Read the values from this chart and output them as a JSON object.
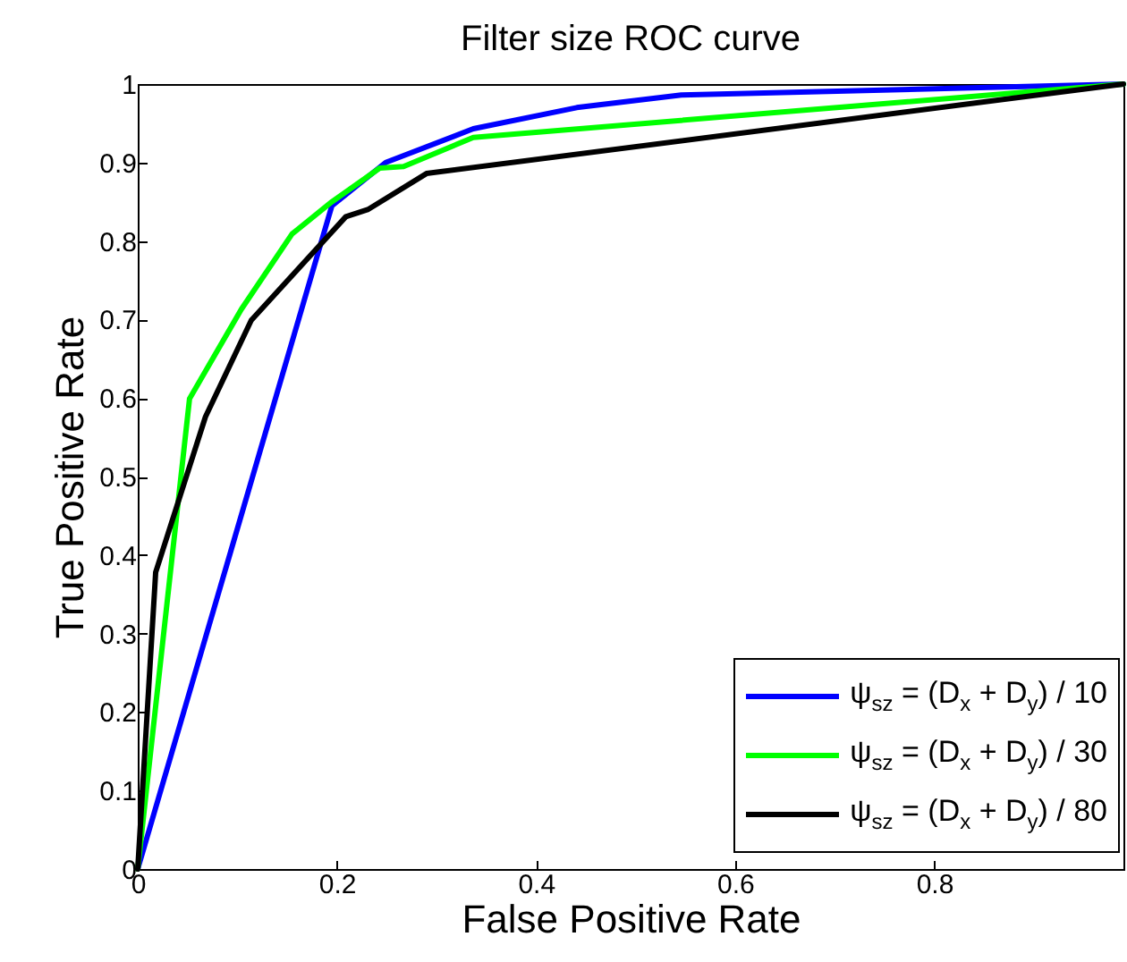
{
  "chart_data": {
    "type": "line",
    "title": "Filter size ROC curve",
    "xlabel": "False Positive Rate",
    "ylabel": "True Positive Rate",
    "xlim": [
      0,
      0.99
    ],
    "xticks": [
      0,
      0.2,
      0.4,
      0.6,
      0.8
    ],
    "ylim": [
      0,
      1
    ],
    "yticks": [
      0,
      0.1,
      0.2,
      0.3,
      0.4,
      0.5,
      0.6,
      0.7,
      0.8,
      0.9,
      1
    ],
    "grid": false,
    "legend": "bottom right",
    "marker": "none",
    "line_style": "solid",
    "series": [
      {
        "name": "ψ$_{sz}$ = (D$_{x}$ + D$_{y}$) / 10",
        "color": "#0000ff",
        "x": [
          0,
          0.195,
          0.249,
          0.337,
          0.441,
          0.546,
          0.99
        ],
        "values": [
          0,
          0.845,
          0.9,
          0.943,
          0.97,
          0.986,
          1
        ]
      },
      {
        "name": "ψ$_{sz}$ = (D$_{x}$ + D$_{y}$) / 30",
        "color": "#00ff00",
        "x": [
          0,
          0.052,
          0.104,
          0.155,
          0.195,
          0.243,
          0.267,
          0.337,
          0.99
        ],
        "values": [
          0,
          0.599,
          0.713,
          0.809,
          0.85,
          0.893,
          0.895,
          0.932,
          1
        ]
      },
      {
        "name": "ψ$_{sz}$ = (D$_{x}$ + D$_{y}$) / 80",
        "color": "#000000",
        "x": [
          0,
          0.018,
          0.068,
          0.114,
          0.209,
          0.231,
          0.29,
          0.99
        ],
        "values": [
          0,
          0.378,
          0.576,
          0.699,
          0.831,
          0.84,
          0.886,
          1
        ]
      }
    ]
  }
}
